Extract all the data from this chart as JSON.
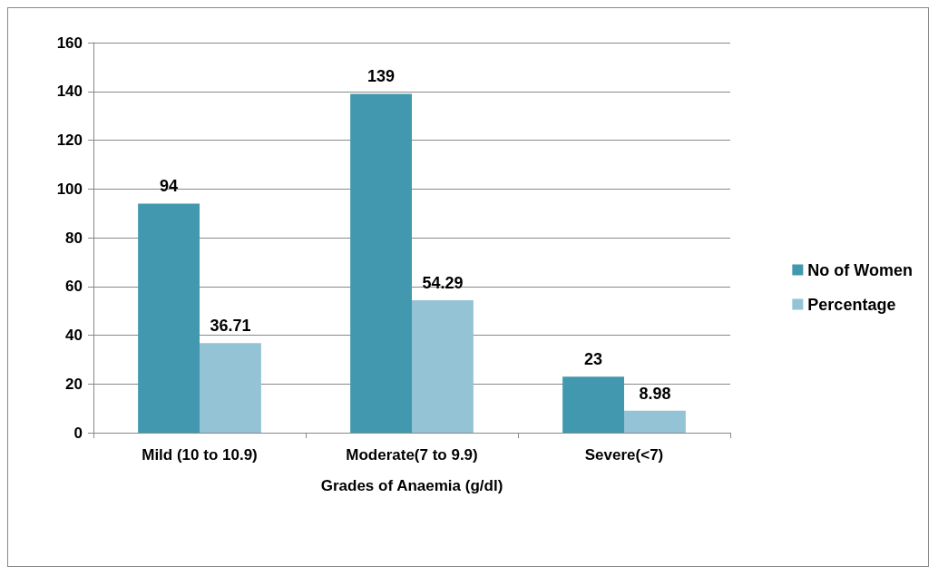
{
  "chart_data": {
    "type": "bar",
    "xlabel": "Grades of Anaemia (g/dl)",
    "categories": [
      "Mild (10 to 10.9)",
      "Moderate(7 to 9.9)",
      "Severe(<7)"
    ],
    "series": [
      {
        "name": "No of Women",
        "color": "#4198af",
        "values": [
          94,
          139,
          23
        ]
      },
      {
        "name": "Percentage",
        "color": "#93c3d4",
        "values": [
          36.71,
          54.29,
          8.98
        ]
      }
    ],
    "ylim": [
      0,
      160
    ],
    "yticks": [
      0,
      20,
      40,
      60,
      80,
      100,
      120,
      140,
      160
    ],
    "grid": "y",
    "legend": "right",
    "data_labels": true
  }
}
